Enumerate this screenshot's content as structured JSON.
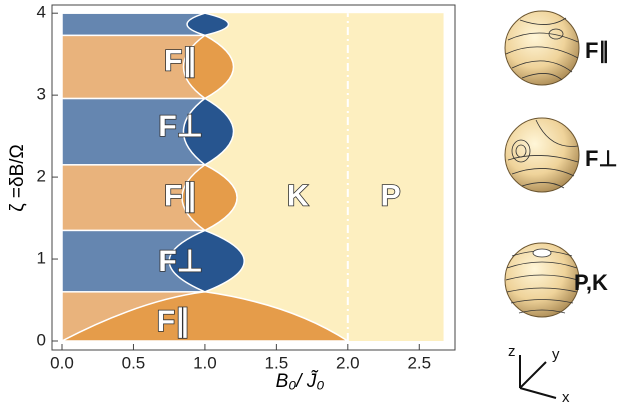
{
  "chart_data": {
    "type": "phase-diagram",
    "x_label": "B₀/ J̃₀",
    "y_label": "ζ =δB/Ω",
    "xlim": [
      -0.07,
      2.75
    ],
    "ylim": [
      -0.11,
      4.1
    ],
    "xticks": [
      {
        "value": 0,
        "label": "0.0"
      },
      {
        "value": 0.5,
        "label": "0.5"
      },
      {
        "value": 1,
        "label": "1.0"
      },
      {
        "value": 1.5,
        "label": "1.5"
      },
      {
        "value": 2,
        "label": "2.0"
      },
      {
        "value": 2.5,
        "label": "2.5"
      }
    ],
    "yticks": [
      0,
      1,
      2,
      3,
      4
    ],
    "region_labels": [
      "F∥",
      "F⊥",
      "F∥",
      "K",
      "P",
      "F⊥",
      "F∥"
    ]
  },
  "legend": {
    "items": [
      "F∥",
      "F⊥",
      "P,K"
    ]
  },
  "axes_icon": {
    "labels": [
      "z",
      "y",
      "x"
    ]
  }
}
